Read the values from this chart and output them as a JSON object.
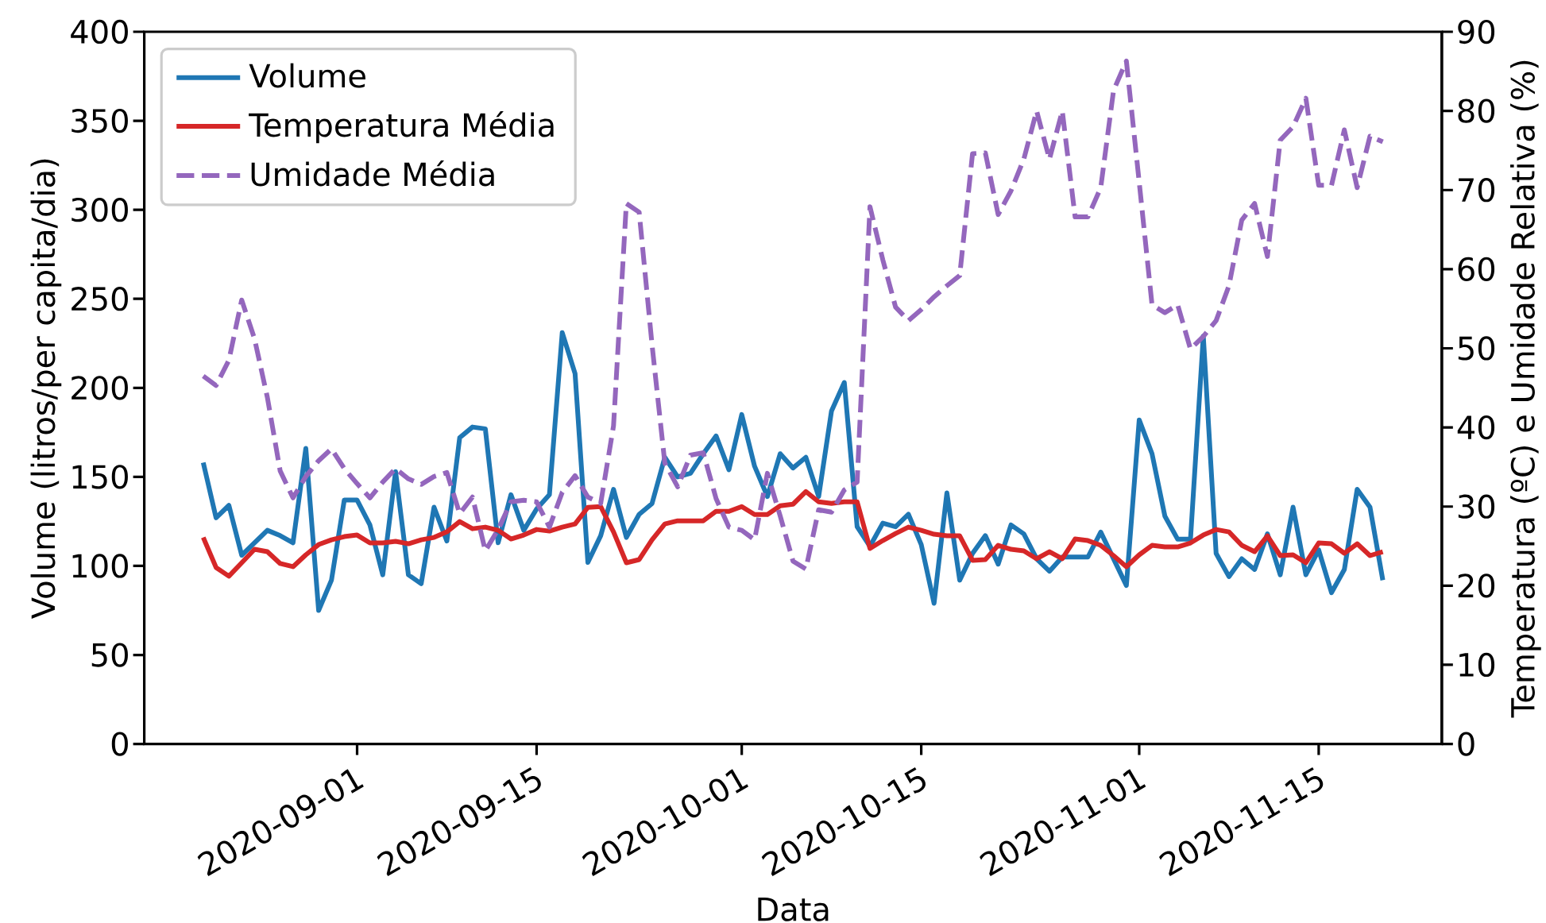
{
  "chart_data": {
    "type": "line",
    "xlabel": "Data",
    "ylabel": "Volume (litros/per capita/dia)",
    "y2label": "Temperatura (ºC) e Umidade Relativa (%)",
    "x": [
      "2020-08-20",
      "2020-08-21",
      "2020-08-22",
      "2020-08-23",
      "2020-08-24",
      "2020-08-25",
      "2020-08-26",
      "2020-08-27",
      "2020-08-28",
      "2020-08-29",
      "2020-08-30",
      "2020-08-31",
      "2020-09-01",
      "2020-09-02",
      "2020-09-03",
      "2020-09-04",
      "2020-09-05",
      "2020-09-06",
      "2020-09-07",
      "2020-09-08",
      "2020-09-09",
      "2020-09-10",
      "2020-09-11",
      "2020-09-12",
      "2020-09-13",
      "2020-09-14",
      "2020-09-15",
      "2020-09-16",
      "2020-09-17",
      "2020-09-18",
      "2020-09-19",
      "2020-09-20",
      "2020-09-21",
      "2020-09-22",
      "2020-09-23",
      "2020-09-24",
      "2020-09-25",
      "2020-09-26",
      "2020-09-27",
      "2020-09-28",
      "2020-09-29",
      "2020-09-30",
      "2020-10-01",
      "2020-10-02",
      "2020-10-03",
      "2020-10-04",
      "2020-10-05",
      "2020-10-06",
      "2020-10-07",
      "2020-10-08",
      "2020-10-09",
      "2020-10-10",
      "2020-10-11",
      "2020-10-12",
      "2020-10-13",
      "2020-10-14",
      "2020-10-15",
      "2020-10-16",
      "2020-10-17",
      "2020-10-18",
      "2020-10-19",
      "2020-10-20",
      "2020-10-21",
      "2020-10-22",
      "2020-10-23",
      "2020-10-24",
      "2020-10-25",
      "2020-10-26",
      "2020-10-27",
      "2020-10-28",
      "2020-10-29",
      "2020-10-30",
      "2020-10-31",
      "2020-11-01",
      "2020-11-02",
      "2020-11-03",
      "2020-11-04",
      "2020-11-05",
      "2020-11-06",
      "2020-11-07",
      "2020-11-08",
      "2020-11-09",
      "2020-11-10",
      "2020-11-11",
      "2020-11-12",
      "2020-11-13",
      "2020-11-14",
      "2020-11-15",
      "2020-11-16",
      "2020-11-17",
      "2020-11-18",
      "2020-11-19",
      "2020-11-20"
    ],
    "series": [
      {
        "name": "Volume",
        "color": "#1f77b4",
        "line_style": "solid",
        "values": [
          158,
          127,
          134,
          106,
          113,
          120,
          117,
          113,
          166,
          75,
          92,
          137,
          137,
          123,
          95,
          153,
          95,
          90,
          133,
          114,
          172,
          178,
          177,
          113,
          140,
          120,
          132,
          140,
          231,
          208,
          102,
          117,
          143,
          116,
          129,
          135,
          161,
          150,
          152,
          163,
          173,
          154,
          185,
          156,
          139,
          163,
          155,
          161,
          139,
          187,
          203,
          122,
          111,
          124,
          122,
          129,
          112,
          79,
          141,
          92,
          107,
          117,
          101,
          123,
          118,
          104,
          97,
          105,
          105,
          105,
          119,
          104,
          89,
          182,
          163,
          128,
          115,
          115,
          229,
          107,
          94,
          104,
          98,
          118,
          95,
          133,
          95,
          109,
          85,
          98,
          143,
          133,
          92
        ]
      },
      {
        "name": "Temperatura Média",
        "color": "#d62728",
        "line_style": "solid",
        "axis": "y2",
        "values": [
          26.1,
          22.3,
          21.2,
          22.9,
          24.6,
          24.3,
          22.8,
          22.4,
          23.9,
          25.2,
          25.8,
          26.2,
          26.4,
          25.4,
          25.4,
          25.6,
          25.3,
          25.8,
          26.1,
          26.8,
          28.1,
          27.2,
          27.4,
          27.0,
          25.9,
          26.4,
          27.1,
          26.9,
          27.4,
          27.8,
          29.9,
          30.0,
          26.8,
          22.9,
          23.3,
          25.8,
          27.8,
          28.2,
          28.2,
          28.2,
          29.4,
          29.4,
          30.0,
          29.0,
          29.0,
          30.1,
          30.3,
          31.9,
          30.6,
          30.4,
          30.6,
          30.6,
          24.7,
          25.7,
          26.6,
          27.4,
          27.0,
          26.5,
          26.3,
          26.3,
          23.2,
          23.3,
          25.1,
          24.6,
          24.4,
          23.4,
          24.3,
          23.4,
          25.9,
          25.7,
          25.1,
          23.8,
          22.4,
          23.9,
          25.1,
          24.9,
          24.9,
          25.4,
          26.4,
          27.1,
          26.8,
          25.1,
          24.3,
          26.3,
          23.8,
          23.9,
          22.9,
          25.4,
          25.3,
          24.1,
          25.3,
          23.8,
          24.3
        ]
      },
      {
        "name": "Umidade Média",
        "color": "#9467bd",
        "line_style": "dashed",
        "axis": "y2",
        "values": [
          46.5,
          45.3,
          48.5,
          56.1,
          51.2,
          43.8,
          34.5,
          31.1,
          33.8,
          35.8,
          37.3,
          34.8,
          32.9,
          31.1,
          33.1,
          34.8,
          33.5,
          32.8,
          33.8,
          34.3,
          29.1,
          31.2,
          24.4,
          27.1,
          30.6,
          30.8,
          30.6,
          27.4,
          31.8,
          33.9,
          31.2,
          30.4,
          40.2,
          68.3,
          67.2,
          50.5,
          35.5,
          32.5,
          36.5,
          36.8,
          31.0,
          27.4,
          27.0,
          25.8,
          34.2,
          28.8,
          23.1,
          22.1,
          29.6,
          29.3,
          32.1,
          33.1,
          67.9,
          61.2,
          55.2,
          53.5,
          54.9,
          56.5,
          57.9,
          59.2,
          74.6,
          74.7,
          66.9,
          69.9,
          73.9,
          80.0,
          73.9,
          80.0,
          66.6,
          66.6,
          70.3,
          82.6,
          86.3,
          71.0,
          55.5,
          54.5,
          55.5,
          49.9,
          51.5,
          53.5,
          57.9,
          66.2,
          68.3,
          61.6,
          76.3,
          78.0,
          81.6,
          70.6,
          70.6,
          77.6,
          70.3,
          76.8,
          76.1
        ]
      }
    ],
    "xlim": [
      "2020-08-15T09:36",
      "2020-11-24T14:24"
    ],
    "xticks": [
      "2020-09-01",
      "2020-09-15",
      "2020-10-01",
      "2020-10-15",
      "2020-11-01",
      "2020-11-15"
    ],
    "ylim": [
      0,
      400
    ],
    "yticks": [
      0,
      50,
      100,
      150,
      200,
      250,
      300,
      350,
      400
    ],
    "y2lim": [
      0,
      90
    ],
    "y2ticks": [
      0,
      10,
      20,
      30,
      40,
      50,
      60,
      70,
      80,
      90
    ],
    "legend": "top left"
  }
}
